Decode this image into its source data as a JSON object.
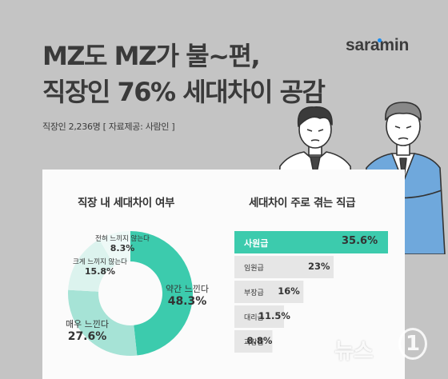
{
  "brand": {
    "name": "saramin",
    "dot_color": "#1b8cf0"
  },
  "title": {
    "line1": "MZ도 MZ가 불~편,",
    "line2": "직장인 76% 세대차이 공감"
  },
  "subtitle": "직장인 2,236명 [ 자료제공: 사람인 ]",
  "watermark": {
    "text": "뉴스",
    "mark": "1"
  },
  "chart_data": [
    {
      "type": "pie",
      "title": "직장 내 세대차이 여부",
      "categories": [
        "약간 느낀다",
        "매우 느낀다",
        "크게 느끼지 않는다",
        "전혀 느끼지 않는다"
      ],
      "values": [
        48.3,
        27.6,
        15.8,
        8.3
      ],
      "value_labels": [
        "48.3%",
        "27.6%",
        "15.8%",
        "8.3%"
      ],
      "colors": [
        "#3ccbad",
        "#a6e3d6",
        "#dcf3ee",
        "#eef9f7"
      ],
      "donut": true
    },
    {
      "type": "bar",
      "orientation": "horizontal",
      "title": "세대차이 주로 겪는 직급",
      "categories": [
        "사원급",
        "임원급",
        "부장급",
        "대리급",
        "과장급"
      ],
      "values": [
        35.6,
        23,
        16,
        11.5,
        8.8
      ],
      "value_labels": [
        "35.6%",
        "23%",
        "16%",
        "11.5%",
        "8.8%"
      ],
      "colors": [
        "#3ccbad",
        "#e6e6e6",
        "#e6e6e6",
        "#e6e6e6",
        "#e6e6e6"
      ]
    }
  ]
}
